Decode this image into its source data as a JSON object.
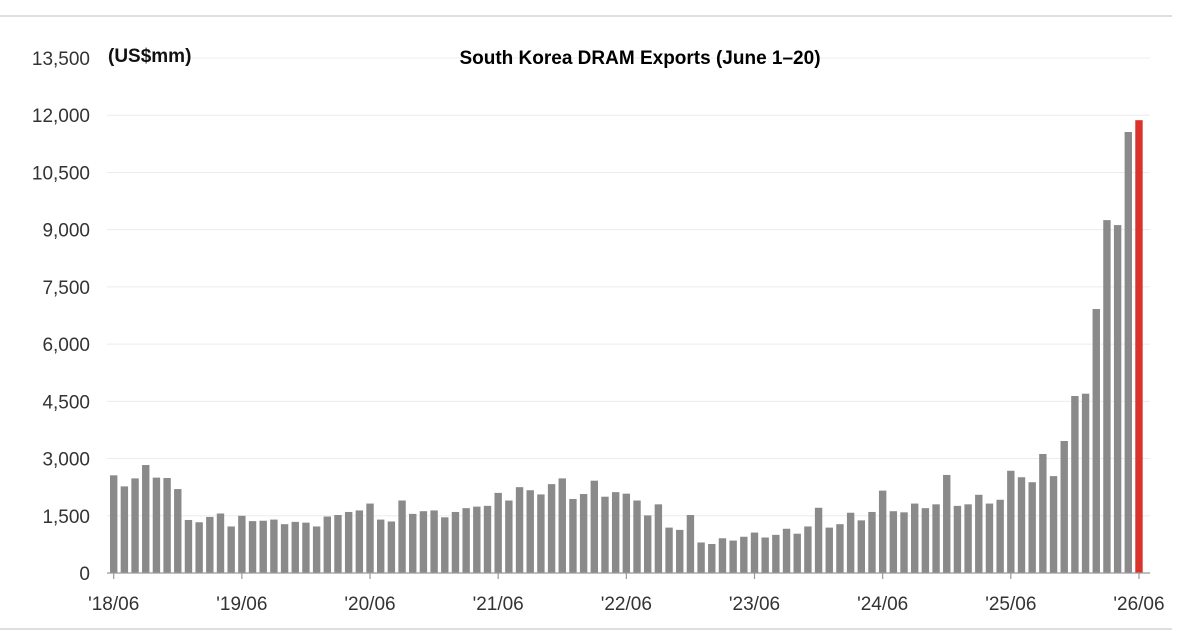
{
  "chart_data": {
    "type": "bar",
    "title": "South Korea DRAM Exports (June 1–20)",
    "unit_label": "(US$mm)",
    "xlabel": "",
    "ylabel": "",
    "ylim": [
      0,
      13500
    ],
    "y_ticks": [
      0,
      1500,
      3000,
      4500,
      6000,
      7500,
      9000,
      10500,
      12000,
      13500
    ],
    "y_tick_labels": [
      "0",
      "1,500",
      "3,000",
      "4,500",
      "6,000",
      "7,500",
      "9,000",
      "10,500",
      "12,000",
      "13,500"
    ],
    "x_tick_labels": [
      "'18/06",
      "'19/06",
      "'20/06",
      "'21/06",
      "'22/06",
      "'23/06",
      "'24/06",
      "'25/06",
      "'26/06"
    ],
    "x_tick_indices": [
      0,
      12,
      24,
      36,
      48,
      60,
      72,
      84,
      96
    ],
    "grid": true,
    "bar_color": "#8a8a8a",
    "highlight_color": "#d9332b",
    "highlight_index": 96,
    "values": [
      2560,
      2270,
      2480,
      2830,
      2500,
      2490,
      2200,
      1390,
      1330,
      1470,
      1560,
      1220,
      1500,
      1360,
      1370,
      1400,
      1280,
      1340,
      1320,
      1220,
      1480,
      1520,
      1600,
      1640,
      1820,
      1400,
      1350,
      1900,
      1550,
      1620,
      1640,
      1460,
      1600,
      1700,
      1740,
      1760,
      2100,
      1900,
      2250,
      2170,
      2060,
      2330,
      2480,
      1940,
      2070,
      2420,
      2000,
      2120,
      2080,
      1900,
      1510,
      1800,
      1190,
      1130,
      1520,
      800,
      760,
      910,
      850,
      950,
      1060,
      930,
      1000,
      1160,
      1030,
      1220,
      1710,
      1190,
      1280,
      1580,
      1380,
      1600,
      2160,
      1620,
      1590,
      1820,
      1700,
      1800,
      2570,
      1760,
      1800,
      2050,
      1820,
      1920,
      2680,
      2510,
      2380,
      3120,
      2540,
      3460,
      4640,
      4700,
      6920,
      9250,
      9120,
      11560,
      11870
    ]
  }
}
